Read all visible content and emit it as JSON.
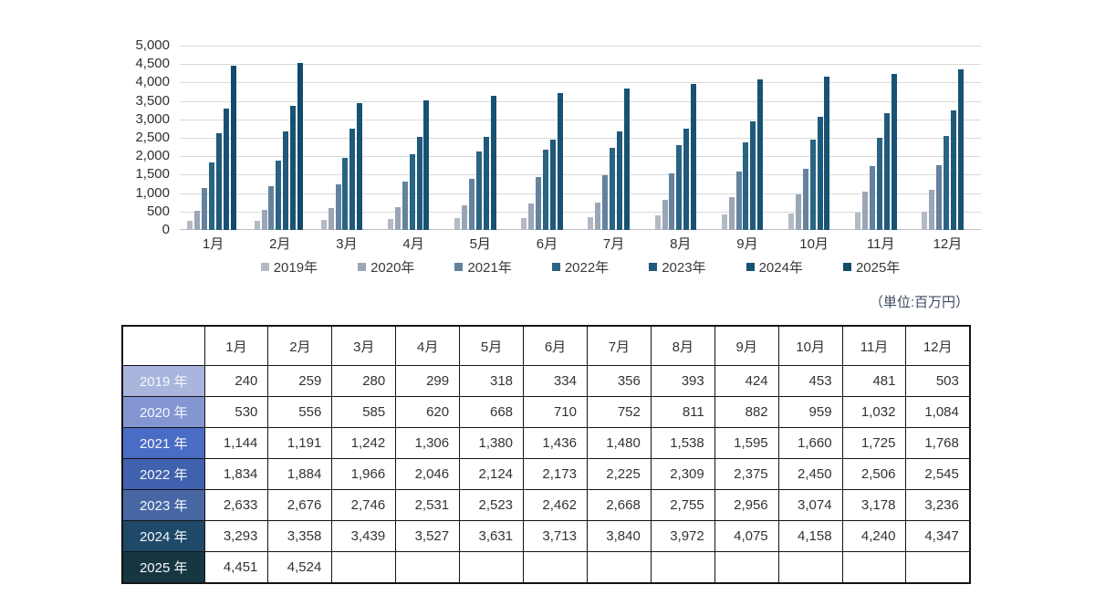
{
  "units_label": "（単位:百万円）",
  "chart_data": {
    "type": "bar",
    "categories": [
      "1月",
      "2月",
      "3月",
      "4月",
      "5月",
      "6月",
      "7月",
      "8月",
      "9月",
      "10月",
      "11月",
      "12月"
    ],
    "series": [
      {
        "name": "2019年",
        "color": "#b3bac4",
        "values": [
          240,
          259,
          280,
          299,
          318,
          334,
          356,
          393,
          424,
          453,
          481,
          503
        ]
      },
      {
        "name": "2020年",
        "color": "#9aa6b6",
        "values": [
          530,
          556,
          585,
          620,
          668,
          710,
          752,
          811,
          882,
          959,
          1032,
          1084
        ]
      },
      {
        "name": "2021年",
        "color": "#64829e",
        "values": [
          1144,
          1191,
          1242,
          1306,
          1380,
          1436,
          1480,
          1538,
          1595,
          1660,
          1725,
          1768
        ]
      },
      {
        "name": "2022年",
        "color": "#2a6484",
        "values": [
          1834,
          1884,
          1966,
          2046,
          2124,
          2173,
          2225,
          2309,
          2375,
          2450,
          2506,
          2545
        ]
      },
      {
        "name": "2023年",
        "color": "#20597a",
        "values": [
          2633,
          2676,
          2746,
          2531,
          2523,
          2462,
          2668,
          2755,
          2956,
          3074,
          3178,
          3236
        ]
      },
      {
        "name": "2024年",
        "color": "#185273",
        "values": [
          3293,
          3358,
          3439,
          3527,
          3631,
          3713,
          3840,
          3972,
          4075,
          4158,
          4240,
          4347
        ]
      },
      {
        "name": "2025年",
        "color": "#114a6a",
        "values": [
          4451,
          4524,
          null,
          null,
          null,
          null,
          null,
          null,
          null,
          null,
          null,
          null
        ]
      }
    ],
    "title": "",
    "xlabel": "",
    "ylabel": "",
    "ylim": [
      0,
      5000
    ],
    "ytick_step": 500,
    "ytick_labels": [
      "5,000",
      "4,500",
      "4,000",
      "3,500",
      "3,000",
      "2,500",
      "2,000",
      "1,500",
      "1,000",
      "500",
      "0"
    ],
    "grid": true,
    "legend_position": "bottom"
  },
  "table": {
    "corner_label": "",
    "column_headers": [
      "1月",
      "2月",
      "3月",
      "4月",
      "5月",
      "6月",
      "7月",
      "8月",
      "9月",
      "10月",
      "11月",
      "12月"
    ],
    "rows": [
      {
        "label": "2019 年",
        "label_bg": "#a9b5dd",
        "values": [
          "240",
          "259",
          "280",
          "299",
          "318",
          "334",
          "356",
          "393",
          "424",
          "453",
          "481",
          "503"
        ]
      },
      {
        "label": "2020 年",
        "label_bg": "#8396d2",
        "values": [
          "530",
          "556",
          "585",
          "620",
          "668",
          "710",
          "752",
          "811",
          "882",
          "959",
          "1,032",
          "1,084"
        ]
      },
      {
        "label": "2021 年",
        "label_bg": "#4a6cc5",
        "values": [
          "1,144",
          "1,191",
          "1,242",
          "1,306",
          "1,380",
          "1,436",
          "1,480",
          "1,538",
          "1,595",
          "1,660",
          "1,725",
          "1,768"
        ]
      },
      {
        "label": "2022 年",
        "label_bg": "#4061ae",
        "values": [
          "1,834",
          "1,884",
          "1,966",
          "2,046",
          "2,124",
          "2,173",
          "2,225",
          "2,309",
          "2,375",
          "2,450",
          "2,506",
          "2,545"
        ]
      },
      {
        "label": "2023 年",
        "label_bg": "#4767a4",
        "values": [
          "2,633",
          "2,676",
          "2,746",
          "2,531",
          "2,523",
          "2,462",
          "2,668",
          "2,755",
          "2,956",
          "3,074",
          "3,178",
          "3,236"
        ]
      },
      {
        "label": "2024 年",
        "label_bg": "#1f4968",
        "values": [
          "3,293",
          "3,358",
          "3,439",
          "3,527",
          "3,631",
          "3,713",
          "3,840",
          "3,972",
          "4,075",
          "4,158",
          "4,240",
          "4,347"
        ]
      },
      {
        "label": "2025 年",
        "label_bg": "#163742",
        "values": [
          "4,451",
          "4,524",
          "",
          "",
          "",
          "",
          "",
          "",
          "",
          "",
          "",
          ""
        ]
      }
    ]
  }
}
